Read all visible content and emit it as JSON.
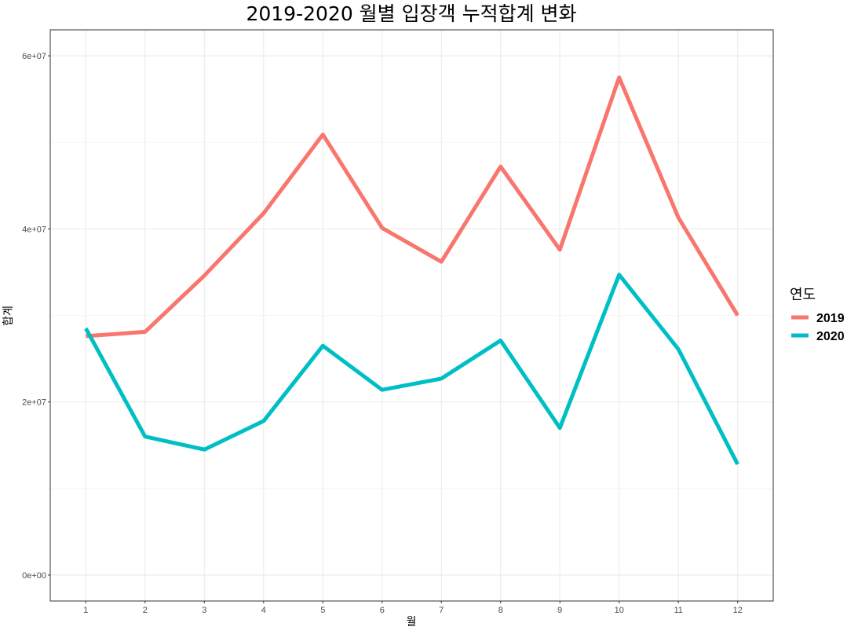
{
  "chart_data": {
    "type": "line",
    "title": "2019-2020 월별 입장객 누적합계 변화",
    "xlabel": "월",
    "ylabel": "합계",
    "x": [
      1,
      2,
      3,
      4,
      5,
      6,
      7,
      8,
      9,
      10,
      11,
      12
    ],
    "x_tick_labels": [
      "1",
      "2",
      "3",
      "4",
      "5",
      "6",
      "7",
      "8",
      "9",
      "10",
      "11",
      "12"
    ],
    "xlim": [
      0.4,
      12.6
    ],
    "ylim": [
      -3000000,
      63000000
    ],
    "y_ticks": [
      0,
      20000000,
      40000000,
      60000000
    ],
    "y_tick_labels": [
      "0e+00",
      "2e+07",
      "4e+07",
      "6e+07"
    ],
    "y_minor_ticks": [
      10000000,
      30000000,
      50000000
    ],
    "grid": true,
    "legend": {
      "title": "연도",
      "position": "right"
    },
    "series": [
      {
        "name": "2019",
        "color": "#F8766D",
        "values": [
          27600000,
          28100000,
          34600000,
          41800000,
          50900000,
          40100000,
          36200000,
          47200000,
          37600000,
          57500000,
          41300000,
          30000000
        ]
      },
      {
        "name": "2020",
        "color": "#00BFC4",
        "values": [
          28500000,
          16000000,
          14500000,
          17800000,
          26500000,
          21400000,
          22700000,
          27100000,
          17000000,
          34700000,
          26100000,
          12800000
        ]
      }
    ]
  }
}
